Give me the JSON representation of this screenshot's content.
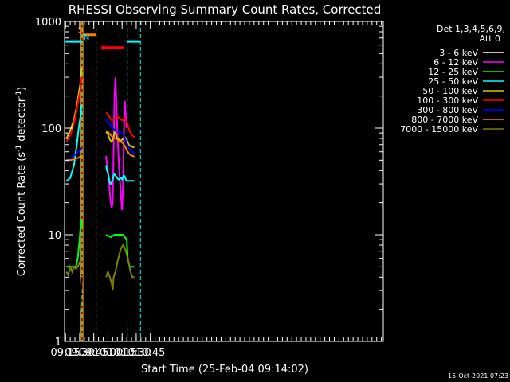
{
  "chart_data": {
    "type": "line",
    "title": "RHESSI Observing Summary Count Rates, Corrected",
    "xlabel": "Start Time (25-Feb-04 09:14:02)",
    "ylabel": "Corrected Count Rate (s",
    "ylabel_sup1": "-1",
    "ylabel_mid": " detector",
    "ylabel_sup2": "-1",
    "ylabel_end": ")",
    "footer": "15-Oct-2021 07:23",
    "xlim_min": [
      554,
      892
    ],
    "ylim": [
      1,
      1000
    ],
    "yscale": "log",
    "grid": false,
    "legend_placement": "right",
    "legend_header": [
      "Det 1,3,4,5,6,9,",
      "Att 0"
    ],
    "x_ticks": [
      {
        "t": 555,
        "label": "09:15"
      },
      {
        "t": 570,
        "label": "09:30"
      },
      {
        "t": 585,
        "label": "09:45"
      },
      {
        "t": 600,
        "label": "10:00"
      },
      {
        "t": 615,
        "label": "10:15"
      },
      {
        "t": 630,
        "label": "10:30"
      },
      {
        "t": 645,
        "label": "10:45"
      }
    ],
    "y_ticks": [
      {
        "v": 1,
        "label": "1"
      },
      {
        "v": 10,
        "label": "10"
      },
      {
        "v": 100,
        "label": "100"
      },
      {
        "v": 1000,
        "label": "1000"
      }
    ],
    "series": [
      {
        "name": "3 - 6 keV",
        "color": "#000000",
        "segments": [
          [
            [
              569.5,
              3
            ],
            [
              570.5,
              2
            ],
            [
              571.5,
              3
            ],
            [
              572.5,
              4
            ]
          ],
          [
            [
              598,
              100
            ],
            [
              599,
              85
            ],
            [
              600,
              70
            ],
            [
              601,
              55
            ],
            [
              602,
              40
            ],
            [
              603,
              28
            ],
            [
              604,
              32
            ],
            [
              605,
              60
            ],
            [
              606,
              180
            ],
            [
              607,
              230
            ],
            [
              608,
              150
            ],
            [
              609,
              120
            ],
            [
              610,
              90
            ],
            [
              611,
              70
            ],
            [
              612,
              55
            ],
            [
              613,
              40
            ],
            [
              614,
              30
            ],
            [
              615,
              25
            ],
            [
              616,
              40
            ],
            [
              617,
              90
            ],
            [
              618,
              170
            ],
            [
              619,
              140
            ],
            [
              620,
              140
            ],
            [
              620.5,
              5
            ],
            [
              621,
              2.5
            ],
            [
              622,
              1.2
            ]
          ]
        ]
      },
      {
        "name": "6 - 12 keV",
        "color": "#ff00ff",
        "segments": [
          [
            [
              598,
              55
            ],
            [
              599,
              45
            ],
            [
              600,
              40
            ],
            [
              601,
              33
            ],
            [
              602,
              25
            ],
            [
              603,
              20
            ],
            [
              604,
              18
            ],
            [
              605,
              20
            ],
            [
              606,
              60
            ],
            [
              607,
              200
            ],
            [
              608,
              300
            ],
            [
              609,
              170
            ],
            [
              610,
              90
            ],
            [
              611,
              60
            ],
            [
              612,
              40
            ],
            [
              613,
              30
            ],
            [
              614,
              22
            ],
            [
              615,
              17
            ],
            [
              616,
              30
            ],
            [
              617,
              100
            ],
            [
              618,
              180
            ],
            [
              619,
              130
            ],
            [
              620,
              100
            ]
          ]
        ]
      },
      {
        "name": "12 - 25 keV",
        "color": "#00ff00",
        "segments": [
          [
            [
              556,
              5
            ],
            [
              562,
              5
            ],
            [
              566,
              5
            ],
            [
              568,
              6
            ],
            [
              570,
              9
            ],
            [
              571.5,
              14
            ],
            [
              572.5,
              12
            ]
          ],
          [
            [
              598,
              10
            ],
            [
              603,
              9.5
            ],
            [
              607,
              10
            ],
            [
              612,
              10
            ],
            [
              616,
              10
            ],
            [
              620,
              9
            ],
            [
              621,
              6
            ],
            [
              623,
              5
            ],
            [
              628,
              5
            ]
          ]
        ]
      },
      {
        "name": "25 - 50 keV",
        "color": "#00ffff",
        "segments": [
          [
            [
              556,
              32
            ],
            [
              560,
              34
            ],
            [
              564,
              45
            ],
            [
              567,
              70
            ],
            [
              569,
              100
            ],
            [
              571,
              130
            ],
            [
              572,
              165
            ]
          ],
          [
            [
              598,
              45
            ],
            [
              599,
              40
            ],
            [
              600,
              38
            ],
            [
              601,
              34
            ],
            [
              602,
              31
            ],
            [
              603,
              30
            ],
            [
              604,
              31
            ],
            [
              605,
              33
            ],
            [
              606,
              36
            ],
            [
              607,
              37
            ],
            [
              608,
              36
            ],
            [
              609,
              35
            ],
            [
              610,
              34
            ],
            [
              611,
              33
            ],
            [
              612,
              33
            ],
            [
              613,
              34
            ],
            [
              614,
              34
            ],
            [
              615,
              33
            ],
            [
              616,
              35
            ],
            [
              617,
              36
            ],
            [
              618,
              35
            ],
            [
              619,
              33
            ],
            [
              620,
              32
            ],
            [
              622,
              32
            ],
            [
              628,
              32
            ]
          ]
        ]
      },
      {
        "name": "50 - 100 keV",
        "color": "#cccc00",
        "segments": [
          [
            [
              556,
              80
            ],
            [
              560,
              95
            ],
            [
              564,
              120
            ],
            [
              567,
              160
            ],
            [
              569,
              210
            ],
            [
              571,
              270
            ],
            [
              572,
              370
            ]
          ],
          [
            [
              598,
              92
            ],
            [
              600,
              88
            ],
            [
              602,
              78
            ],
            [
              604,
              74
            ],
            [
              606,
              82
            ],
            [
              607,
              92
            ],
            [
              608,
              88
            ],
            [
              610,
              80
            ],
            [
              612,
              78
            ],
            [
              614,
              76
            ],
            [
              616,
              80
            ],
            [
              618,
              82
            ],
            [
              620,
              78
            ],
            [
              622,
              70
            ],
            [
              625,
              67
            ],
            [
              628,
              66
            ]
          ]
        ]
      },
      {
        "name": "100 - 300 keV",
        "color": "#ff0000",
        "segments": [
          [
            [
              556,
              74
            ],
            [
              560,
              85
            ],
            [
              564,
              110
            ],
            [
              567,
              150
            ],
            [
              569,
              190
            ],
            [
              571,
              230
            ],
            [
              572,
              300
            ]
          ],
          [
            [
              598,
              140
            ],
            [
              600,
              135
            ],
            [
              602,
              125
            ],
            [
              604,
              118
            ],
            [
              606,
              120
            ],
            [
              608,
              125
            ],
            [
              610,
              128
            ],
            [
              612,
              125
            ],
            [
              614,
              120
            ],
            [
              616,
              118
            ],
            [
              618,
              125
            ],
            [
              620,
              115
            ],
            [
              622,
              100
            ],
            [
              624,
              90
            ],
            [
              626,
              85
            ],
            [
              628,
              82
            ]
          ]
        ]
      },
      {
        "name": "300 - 800 keV",
        "color": "#0000ff",
        "segments": [
          [
            [
              556,
              48
            ],
            [
              560,
              52
            ],
            [
              564,
              55
            ],
            [
              567,
              58
            ],
            [
              569,
              60
            ],
            [
              571,
              63
            ],
            [
              572,
              65
            ]
          ],
          [
            [
              598,
              120
            ],
            [
              600,
              115
            ],
            [
              602,
              108
            ],
            [
              604,
              102
            ],
            [
              606,
              98
            ],
            [
              608,
              95
            ],
            [
              610,
              93
            ],
            [
              612,
              92
            ],
            [
              614,
              90
            ],
            [
              616,
              88
            ],
            [
              618,
              80
            ],
            [
              620,
              72
            ],
            [
              622,
              66
            ],
            [
              624,
              62
            ],
            [
              626,
              60
            ],
            [
              628,
              58
            ]
          ]
        ]
      },
      {
        "name": "800 - 7000 keV",
        "color": "#ff8000",
        "segments": [
          [
            [
              556,
              50
            ],
            [
              560,
              50
            ],
            [
              564,
              51
            ],
            [
              567,
              52
            ],
            [
              569,
              53
            ],
            [
              571,
              54
            ],
            [
              572,
              55
            ]
          ],
          [
            [
              598,
              95
            ],
            [
              600,
              92
            ],
            [
              602,
              88
            ],
            [
              604,
              84
            ],
            [
              606,
              82
            ],
            [
              608,
              80
            ],
            [
              610,
              78
            ],
            [
              612,
              76
            ],
            [
              614,
              74
            ],
            [
              616,
              72
            ],
            [
              618,
              68
            ],
            [
              620,
              62
            ],
            [
              622,
              58
            ],
            [
              624,
              56
            ],
            [
              626,
              55
            ],
            [
              628,
              54
            ]
          ]
        ]
      },
      {
        "name": "7000 - 15000 keV",
        "color": "#808000",
        "segments": [
          [
            [
              556,
              4.5
            ],
            [
              558,
              4.2
            ],
            [
              560,
              5
            ],
            [
              562,
              4.5
            ],
            [
              564,
              5
            ],
            [
              566,
              4.8
            ],
            [
              568,
              5
            ],
            [
              570,
              5.5
            ],
            [
              572,
              6
            ]
          ],
          [
            [
              598,
              4
            ],
            [
              600,
              4.5
            ],
            [
              602,
              4
            ],
            [
              604,
              3.5
            ],
            [
              605,
              3
            ],
            [
              606,
              4
            ],
            [
              608,
              4.5
            ],
            [
              610,
              5.5
            ],
            [
              612,
              6.5
            ],
            [
              614,
              7.5
            ],
            [
              616,
              8
            ],
            [
              618,
              7.5
            ],
            [
              620,
              6.5
            ],
            [
              622,
              5.5
            ],
            [
              624,
              4.5
            ],
            [
              626,
              4
            ],
            [
              628,
              4
            ]
          ]
        ]
      }
    ],
    "annotations": {
      "saa_label": "S",
      "night_label": "N",
      "flare_label": "F",
      "attenuator_level": 650,
      "saa_bar_level": 750,
      "flare_bar_level": 570,
      "cyan_vlines": [
        572.5,
        620.5,
        634.5
      ],
      "orange_vlines_solid": [
        571.5,
        573.5
      ],
      "orange_vlines_dashed": [
        587.5
      ],
      "cyan_bar_segments": [
        [
          555,
          572.5
        ],
        [
          620.5,
          634.5
        ]
      ],
      "saa_bar_segment": [
        573.5,
        587.5
      ],
      "flare_bar_segment": [
        593,
        621
      ]
    }
  }
}
